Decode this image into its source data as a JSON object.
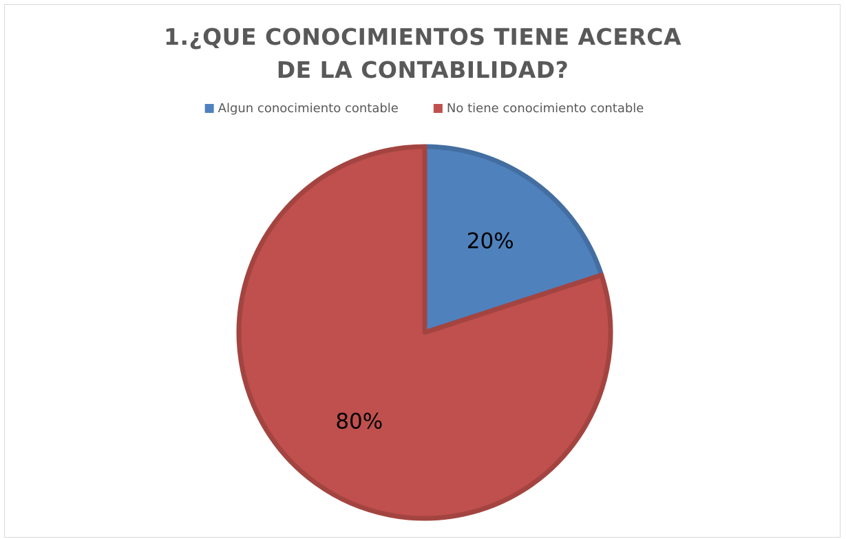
{
  "chart_data": {
    "type": "pie",
    "title": "1.¿QUE CONOCIMIENTOS TIENE ACERCA DE LA CONTABILIDAD?",
    "categories": [
      "Algun conocimiento contable",
      "No tiene conocimiento contable"
    ],
    "values": [
      20,
      80
    ],
    "value_labels": [
      "20%",
      "80%"
    ],
    "colors": [
      "#4f81bd",
      "#c0504d"
    ],
    "legend": "top"
  }
}
